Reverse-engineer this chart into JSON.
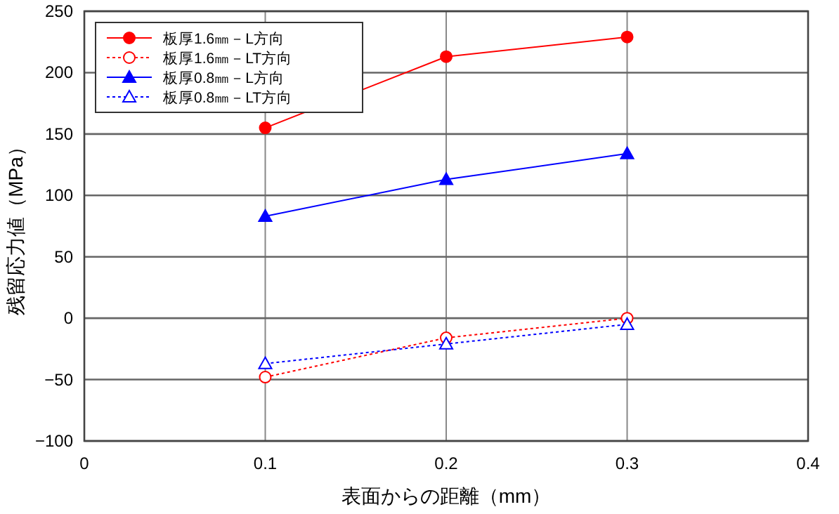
{
  "chart_data": {
    "type": "line",
    "xlabel": "表面からの距離（mm）",
    "ylabel": "残留応力値（MPa）",
    "x": [
      0.1,
      0.2,
      0.3
    ],
    "xlim": [
      0,
      0.4
    ],
    "xticks": [
      0,
      0.1,
      0.2,
      0.3,
      0.4
    ],
    "ylim": [
      -100,
      250
    ],
    "yticks": [
      -100,
      -50,
      0,
      50,
      100,
      150,
      200,
      250
    ],
    "grid": true,
    "legend": "top left",
    "series": [
      {
        "name": "板厚1.6㎜－L方向",
        "color": "#ff0000",
        "values": [
          155,
          213,
          229
        ],
        "marker": "circle",
        "line_style": "solid"
      },
      {
        "name": "板厚1.6㎜－LT方向",
        "color": "#ff0000",
        "values": [
          -48,
          -16,
          0
        ],
        "marker": "circle",
        "line_style": "dotted"
      },
      {
        "name": "板厚0.8㎜－L方向",
        "color": "#0000ff",
        "values": [
          83,
          113,
          134
        ],
        "marker": "triangle",
        "line_style": "solid"
      },
      {
        "name": "板厚0.8㎜－LT方向",
        "color": "#0000ff",
        "values": [
          -37,
          -21,
          -5
        ],
        "marker": "triangle",
        "line_style": "dotted"
      }
    ]
  }
}
